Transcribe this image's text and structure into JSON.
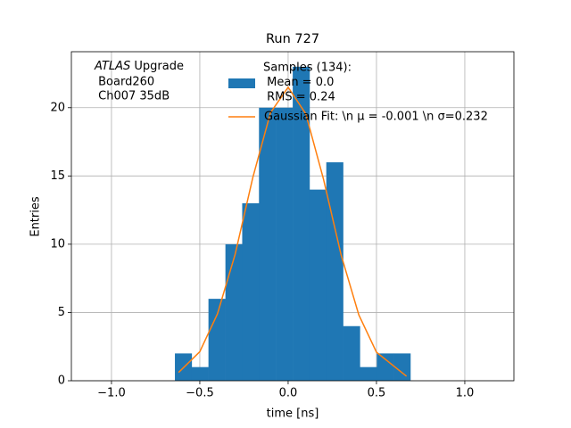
{
  "chart_data": {
    "type": "histogram",
    "title": "Run 727",
    "xlabel": "time [ns]",
    "ylabel": "Entries",
    "bins": [
      -0.641,
      -0.546,
      -0.451,
      -0.355,
      -0.26,
      -0.165,
      -0.07,
      0.026,
      0.121,
      0.216,
      0.311,
      0.406,
      0.502,
      0.597,
      0.692
    ],
    "values": [
      2,
      1,
      6,
      10,
      13,
      20,
      20,
      23,
      14,
      16,
      4,
      1,
      2,
      2
    ],
    "color": "#1f77b4",
    "name_lines": [
      "Samples (134):",
      " Mean = 0.0",
      " RMS = 0.24"
    ],
    "fit": {
      "type": "line",
      "name": "Gaussian Fit: \\n μ = -0.001 \\n σ=0.232",
      "color": "#ff7f0e",
      "x": [
        -0.62,
        -0.5,
        -0.4,
        -0.3,
        -0.2,
        -0.1,
        0.0,
        0.1,
        0.2,
        0.3,
        0.4,
        0.5,
        0.67
      ],
      "values": [
        0.61,
        2.13,
        4.9,
        9.26,
        14.88,
        19.63,
        21.5,
        19.55,
        14.77,
        9.21,
        4.83,
        2.09,
        0.33
      ]
    },
    "annotation": {
      "italic": "ATLAS",
      "rest": " Upgrade",
      "lines": [
        " Board260",
        " Ch007 35dB"
      ]
    },
    "xlim": [
      -1.227,
      1.278
    ],
    "ylim": [
      0,
      24.1
    ],
    "xticks": [
      {
        "value": -1,
        "label": "−1.0"
      },
      {
        "value": -0.5,
        "label": "−0.5"
      },
      {
        "value": 0,
        "label": "0.0"
      },
      {
        "value": 0.5,
        "label": "0.5"
      },
      {
        "value": 1,
        "label": "1.0"
      }
    ],
    "yticks": [
      0,
      5,
      10,
      15,
      20
    ],
    "grid": true,
    "legend": "upper right"
  }
}
